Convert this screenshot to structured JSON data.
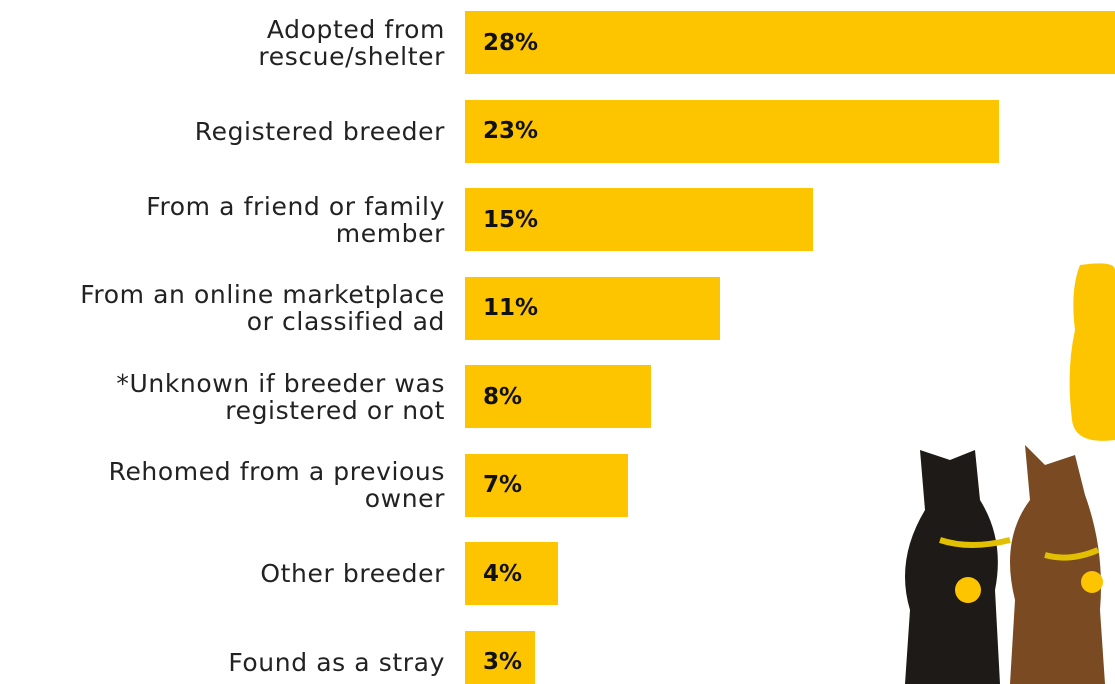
{
  "chart_data": {
    "type": "bar",
    "orientation": "horizontal",
    "categories": [
      "Adopted from\nrescue/shelter",
      "Registered breeder",
      "From a friend or family\nmember",
      "From an online marketplace\nor classified ad",
      "*Unknown if breeder was\nregistered or not",
      "Rehomed from a previous\nowner",
      "Other breeder",
      "Found as a stray"
    ],
    "values": [
      28,
      23,
      15,
      11,
      8,
      7,
      4,
      3
    ],
    "value_labels": [
      "28%",
      "23%",
      "15%",
      "11%",
      "8%",
      "7%",
      "4%",
      "3%"
    ],
    "color": "#fdc500"
  }
}
